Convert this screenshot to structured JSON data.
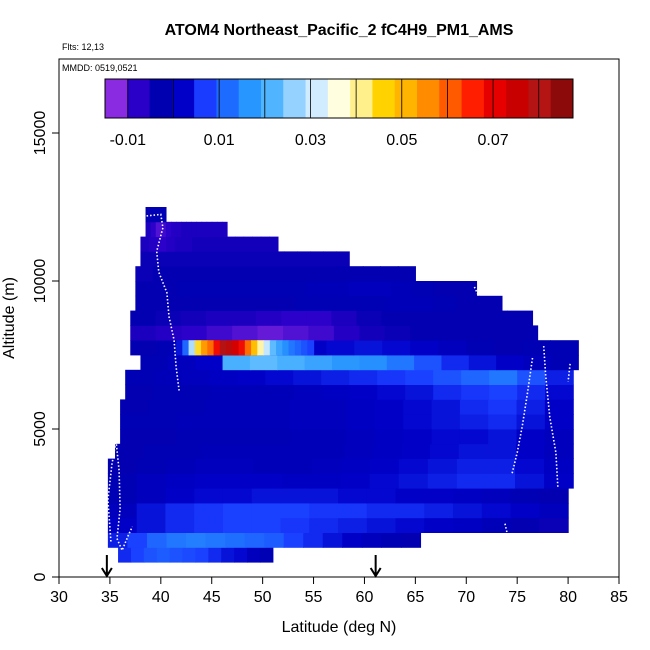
{
  "chart_data": {
    "type": "heatmap",
    "title": "ATOM4 Northeast_Pacific_2 fC4H9_PM1_AMS",
    "flights_note": "Flts: 12,13",
    "date_note": "MMDD: 0519,0521",
    "xlabel": "Latitude (deg N)",
    "ylabel": "Altitude (m)",
    "xlim": [
      30,
      85
    ],
    "ylim": [
      0,
      17500
    ],
    "x_ticks": [
      "30",
      "35",
      "40",
      "45",
      "50",
      "55",
      "60",
      "65",
      "70",
      "75",
      "80",
      "85"
    ],
    "y_ticks": [
      "0",
      "5000",
      "10000",
      "15000"
    ],
    "colorbar": {
      "range": [
        -0.015,
        0.0875
      ],
      "tick_labels": [
        "-0.01",
        "0.01",
        "0.03",
        "0.05",
        "0.07"
      ],
      "tick_values": [
        -0.01,
        0.01,
        0.03,
        0.05,
        0.07
      ],
      "colors": [
        "#8a2be2",
        "#2a00c8",
        "#0000b0",
        "#0000c8",
        "#1a3cff",
        "#1e6cff",
        "#2896ff",
        "#50b4ff",
        "#96d2ff",
        "#d2ecff",
        "#ffffe0",
        "#fff08c",
        "#ffd200",
        "#ffb400",
        "#ff8c00",
        "#ff5a00",
        "#ff1e00",
        "#e60000",
        "#c80000",
        "#b41414",
        "#8c0a0a"
      ]
    },
    "arrows_lat": [
      34.7,
      61.1
    ],
    "layers": [
      {
        "alt_lo": 500,
        "alt_hi": 1000,
        "lat_start": 35.8,
        "lat_end": 51.0,
        "values": [
          0.004,
          0.006,
          0.008,
          0.009,
          0.008,
          0.007,
          0.006,
          0.004,
          0.002,
          0.001,
          -0.002,
          -0.004
        ]
      },
      {
        "alt_lo": 1000,
        "alt_hi": 1500,
        "lat_start": 34.8,
        "lat_end": 65.5,
        "values": [
          0.003,
          0.006,
          0.01,
          0.012,
          0.013,
          0.012,
          0.011,
          0.01,
          0.009,
          0.006,
          0.004,
          0.002,
          0.0,
          -0.002,
          -0.004,
          -0.005
        ]
      },
      {
        "alt_lo": 1500,
        "alt_hi": 2000,
        "lat_start": 34.8,
        "lat_end": 80.0,
        "values": [
          0.0,
          0.002,
          0.004,
          0.005,
          0.006,
          0.006,
          0.005,
          0.004,
          0.003,
          0.002,
          0.001,
          0.0,
          -0.001,
          -0.003,
          -0.005,
          -0.006
        ]
      },
      {
        "alt_lo": 2000,
        "alt_hi": 2500,
        "lat_start": 34.8,
        "lat_end": 80.0,
        "values": [
          -0.002,
          0.002,
          0.004,
          0.005,
          0.006,
          0.006,
          0.006,
          0.005,
          0.005,
          0.004,
          0.004,
          0.003,
          0.002,
          0.001,
          0.0,
          -0.002
        ]
      },
      {
        "alt_lo": 2500,
        "alt_hi": 3000,
        "lat_start": 34.8,
        "lat_end": 80.0,
        "values": [
          -0.004,
          -0.002,
          0.0,
          0.001,
          0.001,
          0.002,
          0.002,
          0.002,
          0.001,
          0.001,
          0.0,
          0.0,
          -0.001,
          -0.002,
          -0.004,
          -0.005
        ]
      },
      {
        "alt_lo": 3000,
        "alt_hi": 3500,
        "lat_start": 34.8,
        "lat_end": 80.5,
        "values": [
          -0.004,
          -0.002,
          -0.001,
          0.0,
          0.0,
          0.0,
          -0.001,
          -0.001,
          0.0,
          0.001,
          0.002,
          0.003,
          0.004,
          0.004,
          0.002,
          0.0
        ]
      },
      {
        "alt_lo": 3500,
        "alt_hi": 4000,
        "lat_start": 34.8,
        "lat_end": 80.5,
        "values": [
          -0.005,
          -0.004,
          -0.003,
          -0.002,
          -0.002,
          -0.003,
          -0.003,
          -0.002,
          -0.001,
          0.0,
          0.001,
          0.002,
          0.003,
          0.003,
          0.001,
          -0.001
        ]
      },
      {
        "alt_lo": 4000,
        "alt_hi": 4500,
        "lat_start": 35.5,
        "lat_end": 80.5,
        "values": [
          -0.005,
          -0.004,
          -0.004,
          -0.003,
          -0.003,
          -0.003,
          -0.003,
          -0.003,
          -0.002,
          -0.001,
          0.0,
          0.001,
          0.002,
          0.002,
          0.0,
          -0.002
        ]
      },
      {
        "alt_lo": 4500,
        "alt_hi": 5000,
        "lat_start": 36.0,
        "lat_end": 80.5,
        "values": [
          -0.005,
          -0.005,
          -0.004,
          -0.004,
          -0.004,
          -0.004,
          -0.003,
          -0.003,
          -0.002,
          -0.001,
          0.0,
          0.001,
          0.001,
          0.002,
          0.0,
          -0.002
        ]
      },
      {
        "alt_lo": 5000,
        "alt_hi": 5500,
        "lat_start": 36.0,
        "lat_end": 80.5,
        "values": [
          -0.004,
          -0.004,
          -0.003,
          -0.003,
          -0.003,
          -0.003,
          -0.002,
          -0.002,
          -0.001,
          0.0,
          0.001,
          0.002,
          0.003,
          0.004,
          0.002,
          0.0
        ]
      },
      {
        "alt_lo": 5500,
        "alt_hi": 6000,
        "lat_start": 36.0,
        "lat_end": 80.5,
        "values": [
          -0.005,
          -0.004,
          -0.004,
          -0.003,
          -0.003,
          -0.003,
          -0.002,
          -0.002,
          -0.001,
          0.0,
          0.001,
          0.002,
          0.004,
          0.005,
          0.003,
          0.0
        ]
      },
      {
        "alt_lo": 6000,
        "alt_hi": 6500,
        "lat_start": 36.5,
        "lat_end": 80.5,
        "values": [
          -0.005,
          -0.004,
          -0.004,
          -0.003,
          -0.003,
          -0.003,
          -0.002,
          -0.001,
          0.0,
          0.001,
          0.002,
          0.004,
          0.005,
          0.006,
          0.004,
          0.001
        ]
      },
      {
        "alt_lo": 6500,
        "alt_hi": 7000,
        "lat_start": 36.5,
        "lat_end": 80.5,
        "values": [
          -0.004,
          -0.003,
          -0.002,
          -0.001,
          0.0,
          0.001,
          0.002,
          0.003,
          0.004,
          0.005,
          0.006,
          0.008,
          0.01,
          0.012,
          0.008,
          0.003
        ]
      },
      {
        "alt_lo": 7000,
        "alt_hi": 7500,
        "lat_start": 38.0,
        "lat_end": 81.0,
        "values": [
          -0.004,
          -0.002,
          0.0,
          0.02,
          0.022,
          0.02,
          0.018,
          0.016,
          0.015,
          0.012,
          0.008,
          0.004,
          0.002,
          0.0,
          -0.002,
          -0.004
        ]
      },
      {
        "alt_lo": 7500,
        "alt_hi": 8000,
        "lat_start": 37.0,
        "lat_end": 81.0,
        "values": [
          -0.005,
          -0.004,
          -0.003,
          -0.003,
          -0.002,
          -0.001,
          0.0,
          0.001,
          0.002,
          0.001,
          0.0,
          -0.002,
          -0.004,
          -0.005,
          -0.004,
          -0.004
        ]
      }
    ],
    "hotspot": {
      "alt_lo": 7500,
      "alt_hi": 8000,
      "lat_start": 41.5,
      "lat_end": 55.0,
      "values": [
        0.002,
        0.01,
        0.028,
        0.045,
        0.055,
        0.06,
        0.07,
        0.082,
        0.08,
        0.075,
        0.07,
        0.06,
        0.05,
        0.04,
        0.03,
        0.022,
        0.018,
        0.015,
        0.012,
        0.01,
        0.008,
        0.006
      ]
    },
    "upper_layers": [
      {
        "alt_lo": 8000,
        "alt_hi": 8500,
        "lat_start": 37.0,
        "lat_end": 77.0,
        "values": [
          -0.008,
          -0.009,
          -0.01,
          -0.011,
          -0.012,
          -0.013,
          -0.012,
          -0.011,
          -0.009,
          -0.007,
          -0.006,
          -0.005,
          -0.005,
          -0.005,
          -0.005,
          -0.005
        ]
      },
      {
        "alt_lo": 8500,
        "alt_hi": 9000,
        "lat_start": 37.0,
        "lat_end": 76.5,
        "values": [
          -0.005,
          -0.006,
          -0.007,
          -0.008,
          -0.008,
          -0.009,
          -0.01,
          -0.01,
          -0.008,
          -0.006,
          -0.005,
          -0.005,
          -0.005,
          -0.005,
          -0.005,
          -0.005
        ]
      },
      {
        "alt_lo": 9000,
        "alt_hi": 9500,
        "lat_start": 37.5,
        "lat_end": 73.5,
        "values": [
          -0.005,
          -0.005,
          -0.005,
          -0.005,
          -0.005,
          -0.005,
          -0.005,
          -0.004,
          -0.004,
          -0.004,
          -0.004,
          -0.003,
          -0.003,
          -0.004,
          -0.005,
          -0.005
        ]
      },
      {
        "alt_lo": 9500,
        "alt_hi": 10000,
        "lat_start": 37.5,
        "lat_end": 71.0,
        "values": [
          -0.005,
          -0.005,
          -0.004,
          -0.004,
          -0.004,
          -0.004,
          -0.004,
          -0.004,
          -0.003,
          -0.003,
          -0.002,
          -0.002,
          -0.003,
          -0.004,
          -0.005,
          -0.005
        ]
      },
      {
        "alt_lo": 10000,
        "alt_hi": 10500,
        "lat_start": 37.5,
        "lat_end": 65.0,
        "values": [
          -0.006,
          -0.005,
          -0.005,
          -0.005,
          -0.005,
          -0.005,
          -0.005,
          -0.005,
          -0.005,
          -0.005,
          -0.005,
          -0.005,
          -0.005,
          -0.005,
          -0.005,
          -0.005
        ]
      },
      {
        "alt_lo": 10500,
        "alt_hi": 11000,
        "lat_start": 38.0,
        "lat_end": 58.5,
        "values": [
          -0.006,
          -0.006,
          -0.006,
          -0.006,
          -0.006,
          -0.006,
          -0.006,
          -0.006,
          -0.006,
          -0.006,
          -0.006,
          -0.006,
          -0.006,
          -0.006,
          -0.006,
          -0.006
        ]
      },
      {
        "alt_lo": 11000,
        "alt_hi": 11500,
        "lat_start": 38.0,
        "lat_end": 51.5,
        "values": [
          -0.008,
          -0.009,
          -0.01,
          -0.009,
          -0.008,
          -0.008,
          -0.007,
          -0.007,
          -0.007,
          -0.007,
          -0.007,
          -0.007,
          -0.007,
          -0.007,
          -0.007,
          -0.007
        ]
      },
      {
        "alt_lo": 11500,
        "alt_hi": 12000,
        "lat_start": 38.5,
        "lat_end": 46.5,
        "values": [
          -0.008,
          -0.01,
          -0.012,
          -0.011,
          -0.01,
          -0.009,
          -0.009,
          -0.008,
          -0.008,
          -0.008,
          -0.008,
          -0.008,
          -0.008,
          -0.008,
          -0.008,
          -0.008
        ]
      },
      {
        "alt_lo": 12000,
        "alt_hi": 12500,
        "lat_start": 38.5,
        "lat_end": 40.5,
        "values": [
          -0.004,
          -0.005,
          -0.006,
          -0.005,
          -0.004,
          -0.004,
          -0.004,
          -0.004,
          -0.004,
          -0.004,
          -0.004,
          -0.004,
          -0.004,
          -0.004,
          -0.004,
          -0.004
        ]
      }
    ],
    "flight_tracks": [
      [
        [
          38.6,
          12200
        ],
        [
          40.0,
          12250
        ],
        [
          40.2,
          11800
        ],
        [
          39.6,
          11000
        ],
        [
          39.8,
          10300
        ],
        [
          40.6,
          9600
        ],
        [
          40.8,
          8800
        ],
        [
          41.3,
          8000
        ],
        [
          41.5,
          7100
        ],
        [
          41.8,
          6300
        ]
      ],
      [
        [
          35.1,
          1200
        ],
        [
          34.8,
          2600
        ],
        [
          35.2,
          3800
        ],
        [
          35.6,
          4600
        ],
        [
          35.9,
          3600
        ],
        [
          36.0,
          2300
        ],
        [
          35.7,
          1300
        ],
        [
          36.2,
          900
        ],
        [
          36.8,
          1400
        ],
        [
          37.2,
          1700
        ]
      ],
      [
        [
          76.5,
          7400
        ],
        [
          76.0,
          6200
        ],
        [
          75.5,
          5100
        ],
        [
          75.0,
          4200
        ],
        [
          74.5,
          3500
        ]
      ],
      [
        [
          77.6,
          7800
        ],
        [
          77.8,
          6800
        ],
        [
          78.2,
          5400
        ],
        [
          78.8,
          4200
        ],
        [
          79.0,
          3000
        ]
      ],
      [
        [
          80.2,
          7200
        ],
        [
          80.0,
          6600
        ]
      ],
      [
        [
          73.8,
          1800
        ],
        [
          74.0,
          1500
        ],
        [
          74.3,
          1300
        ]
      ],
      [
        [
          70.8,
          9800
        ],
        [
          71.2,
          9500
        ]
      ]
    ]
  }
}
